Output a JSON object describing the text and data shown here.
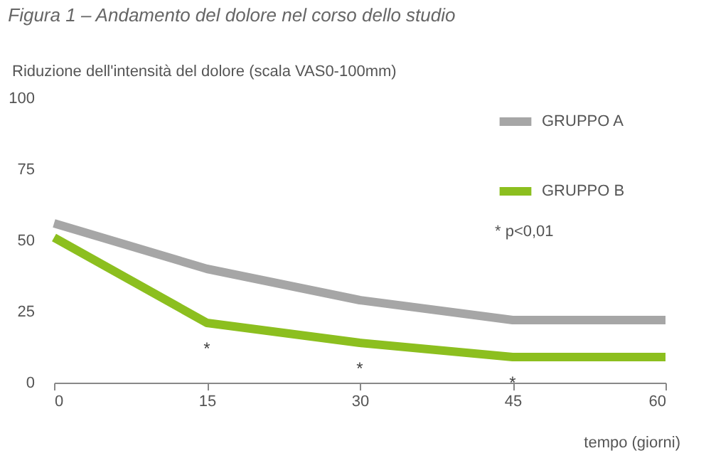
{
  "chart_data": {
    "type": "line",
    "title": "Figura 1 – Andamento del dolore nel corso dello studio",
    "ylabel": "Riduzione dell'intensità del dolore (scala VAS0-100mm)",
    "xlabel": "tempo (giorni)",
    "x": [
      0,
      15,
      30,
      45,
      60
    ],
    "series": [
      {
        "name": "GRUPPO A",
        "color": "#a6a6a6",
        "values": [
          56,
          40,
          29,
          22,
          22
        ]
      },
      {
        "name": "GRUPPO B",
        "color": "#8cbf1f",
        "values": [
          51,
          21,
          14,
          9,
          9
        ]
      }
    ],
    "xlim": [
      0,
      60
    ],
    "xticks": [
      0,
      15,
      30,
      45,
      60
    ],
    "ylim": [
      0,
      100
    ],
    "yticks": [
      0,
      25,
      50,
      75,
      100
    ],
    "grid": false,
    "legend": "top right",
    "marker": "none",
    "line_style": "solid",
    "annotations": [
      {
        "text": "*",
        "x": 15,
        "y": 21
      },
      {
        "text": "*",
        "x": 30,
        "y": 14
      },
      {
        "text": "*",
        "x": 45,
        "y": 9
      },
      "* p<0,01"
    ]
  }
}
